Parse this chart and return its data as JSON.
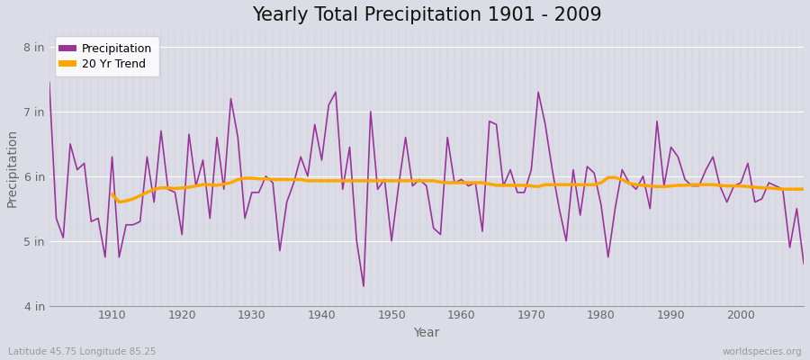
{
  "title": "Yearly Total Precipitation 1901 - 2009",
  "xlabel": "Year",
  "ylabel": "Precipitation",
  "subtitle": "Latitude 45.75 Longitude 85.25",
  "watermark": "worldspecies.org",
  "years": [
    1901,
    1902,
    1903,
    1904,
    1905,
    1906,
    1907,
    1908,
    1909,
    1910,
    1911,
    1912,
    1913,
    1914,
    1915,
    1916,
    1917,
    1918,
    1919,
    1920,
    1921,
    1922,
    1923,
    1924,
    1925,
    1926,
    1927,
    1928,
    1929,
    1930,
    1931,
    1932,
    1933,
    1934,
    1935,
    1936,
    1937,
    1938,
    1939,
    1940,
    1941,
    1942,
    1943,
    1944,
    1945,
    1946,
    1947,
    1948,
    1949,
    1950,
    1951,
    1952,
    1953,
    1954,
    1955,
    1956,
    1957,
    1958,
    1959,
    1960,
    1961,
    1962,
    1963,
    1964,
    1965,
    1966,
    1967,
    1968,
    1969,
    1970,
    1971,
    1972,
    1973,
    1974,
    1975,
    1976,
    1977,
    1978,
    1979,
    1980,
    1981,
    1982,
    1983,
    1984,
    1985,
    1986,
    1987,
    1988,
    1989,
    1990,
    1991,
    1992,
    1993,
    1994,
    1995,
    1996,
    1997,
    1998,
    1999,
    2000,
    2001,
    2002,
    2003,
    2004,
    2005,
    2006,
    2007,
    2008,
    2009
  ],
  "precip": [
    7.45,
    5.35,
    5.05,
    6.5,
    6.1,
    6.2,
    5.3,
    5.35,
    4.75,
    6.3,
    4.75,
    5.25,
    5.25,
    5.3,
    6.3,
    5.6,
    6.7,
    5.8,
    5.75,
    5.1,
    6.65,
    5.85,
    6.25,
    5.35,
    6.6,
    5.8,
    7.2,
    6.6,
    5.35,
    5.75,
    5.75,
    6.0,
    5.9,
    4.85,
    5.6,
    5.9,
    6.3,
    6.0,
    6.8,
    6.25,
    7.1,
    7.3,
    5.8,
    6.45,
    5.0,
    4.3,
    7.0,
    5.8,
    5.95,
    5.0,
    5.85,
    6.6,
    5.85,
    5.95,
    5.85,
    5.2,
    5.1,
    6.6,
    5.9,
    5.95,
    5.85,
    5.9,
    5.15,
    6.85,
    6.8,
    5.85,
    6.1,
    5.75,
    5.75,
    6.1,
    7.3,
    6.8,
    6.1,
    5.5,
    5.0,
    6.1,
    5.4,
    6.15,
    6.05,
    5.55,
    4.75,
    5.5,
    6.1,
    5.9,
    5.8,
    6.0,
    5.5,
    6.85,
    5.85,
    6.45,
    6.3,
    5.95,
    5.85,
    5.85,
    6.1,
    6.3,
    5.85,
    5.6,
    5.85,
    5.9,
    6.2,
    5.6,
    5.65,
    5.9,
    5.85,
    5.8,
    4.9,
    5.5,
    4.65
  ],
  "trend_start_year": 1910,
  "trend": [
    5.72,
    5.6,
    5.62,
    5.65,
    5.7,
    5.75,
    5.8,
    5.82,
    5.82,
    5.81,
    5.82,
    5.83,
    5.85,
    5.87,
    5.87,
    5.86,
    5.88,
    5.9,
    5.95,
    5.97,
    5.97,
    5.96,
    5.96,
    5.95,
    5.95,
    5.95,
    5.95,
    5.95,
    5.93,
    5.93,
    5.93,
    5.93,
    5.93,
    5.93,
    5.93,
    5.93,
    5.93,
    5.93,
    5.93,
    5.93,
    5.93,
    5.93,
    5.93,
    5.93,
    5.93,
    5.93,
    5.93,
    5.91,
    5.9,
    5.9,
    5.9,
    5.9,
    5.9,
    5.9,
    5.88,
    5.86,
    5.86,
    5.86,
    5.86,
    5.86,
    5.85,
    5.84,
    5.87,
    5.87,
    5.87,
    5.87,
    5.87,
    5.87,
    5.87,
    5.87,
    5.9,
    5.98,
    5.98,
    5.95,
    5.89,
    5.87,
    5.86,
    5.85,
    5.84,
    5.84,
    5.85,
    5.86,
    5.86,
    5.87,
    5.87,
    5.87,
    5.87,
    5.86,
    5.85,
    5.85,
    5.85,
    5.84,
    5.83,
    5.82,
    5.82,
    5.81,
    5.8,
    5.8,
    5.8,
    5.8
  ],
  "precip_color": "#993399",
  "trend_color": "#FFA500",
  "bg_color": "#DCDCE6",
  "plot_bg_color": "#DCDCE6",
  "grid_color_h": "#FFFFFF",
  "grid_color_v": "#BBBBCC",
  "ylim": [
    4.0,
    8.25
  ],
  "yticks": [
    4,
    5,
    6,
    7,
    8
  ],
  "ytick_labels": [
    "4 in",
    "5 in",
    "6 in",
    "7 in",
    "8 in"
  ],
  "xticks": [
    1910,
    1920,
    1930,
    1940,
    1950,
    1960,
    1970,
    1980,
    1990,
    2000
  ],
  "xlim": [
    1901,
    2009
  ],
  "title_fontsize": 15,
  "axis_label_fontsize": 10,
  "tick_fontsize": 9,
  "legend_fontsize": 9
}
